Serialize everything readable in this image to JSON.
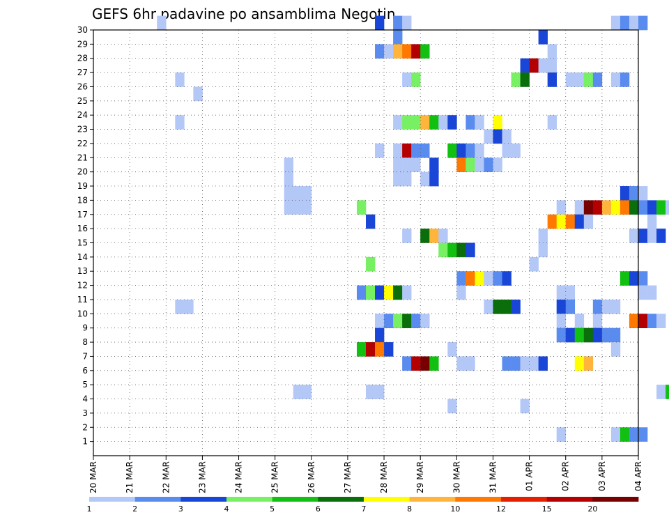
{
  "chart_data": {
    "type": "heatmap",
    "title": "GEFS 6hr padavine po ansamblima Negotin",
    "xlabel": "",
    "ylabel": "",
    "x_start_day": 20,
    "x_end_day": 35,
    "x_ticks": [
      "20 MAR",
      "21 MAR",
      "22 MAR",
      "23 MAR",
      "24 MAR",
      "25 MAR",
      "26 MAR",
      "27 MAR",
      "28 MAR",
      "29 MAR",
      "30 MAR",
      "31 MAR",
      "01 APR",
      "02 APR",
      "03 APR",
      "04 APR"
    ],
    "y_ticks": [
      "1",
      "2",
      "3",
      "4",
      "5",
      "6",
      "7",
      "8",
      "9",
      "10",
      "11",
      "12",
      "13",
      "14",
      "15",
      "16",
      "17",
      "18",
      "19",
      "20",
      "21",
      "22",
      "23",
      "24",
      "25",
      "26",
      "27",
      "28",
      "29",
      "30"
    ],
    "ylim": [
      0,
      30
    ],
    "grid": true,
    "colorbar": {
      "labels": [
        "1",
        "2",
        "3",
        "4",
        "5",
        "6",
        "7",
        "8",
        "10",
        "12",
        "15",
        "20"
      ],
      "colors": [
        "#b4c8f8",
        "#5a8cf0",
        "#1a46d8",
        "#78f064",
        "#12c012",
        "#0a6e0a",
        "#ffff00",
        "#ffb43c",
        "#ff7800",
        "#e61e00",
        "#b40000",
        "#780000"
      ]
    },
    "cells": [
      [
        30,
        21.75,
        1
      ],
      [
        30,
        27.75,
        3
      ],
      [
        30,
        28.25,
        2
      ],
      [
        30,
        28.5,
        1
      ],
      [
        30,
        34.25,
        1
      ],
      [
        30,
        34.5,
        2
      ],
      [
        30,
        34.75,
        1
      ],
      [
        30,
        35,
        2
      ],
      [
        29,
        28.25,
        2
      ],
      [
        29,
        32.25,
        3
      ],
      [
        28,
        27.75,
        2
      ],
      [
        28,
        28,
        1
      ],
      [
        28,
        28.25,
        8
      ],
      [
        28,
        28.5,
        10
      ],
      [
        28,
        28.75,
        15
      ],
      [
        28,
        29,
        5
      ],
      [
        28,
        32.5,
        1
      ],
      [
        27,
        31.75,
        3
      ],
      [
        27,
        32,
        15
      ],
      [
        27,
        32.25,
        1
      ],
      [
        27,
        32.5,
        1
      ],
      [
        26,
        22.25,
        1
      ],
      [
        26,
        28.5,
        1
      ],
      [
        26,
        28.75,
        4
      ],
      [
        26,
        31.5,
        4
      ],
      [
        26,
        31.75,
        6
      ],
      [
        26,
        32.5,
        3
      ],
      [
        26,
        33,
        1
      ],
      [
        26,
        33.25,
        1
      ],
      [
        26,
        33.5,
        4
      ],
      [
        26,
        33.75,
        2
      ],
      [
        26,
        34.25,
        1
      ],
      [
        26,
        34.5,
        2
      ],
      [
        25,
        22.75,
        1
      ],
      [
        23,
        22.25,
        1
      ],
      [
        23,
        28.25,
        1
      ],
      [
        23,
        28.5,
        4
      ],
      [
        23,
        28.75,
        4
      ],
      [
        23,
        29,
        8
      ],
      [
        23,
        29.25,
        5
      ],
      [
        23,
        29.5,
        1
      ],
      [
        23,
        29.75,
        3
      ],
      [
        23,
        30.25,
        2
      ],
      [
        23,
        30.5,
        1
      ],
      [
        23,
        31,
        7
      ],
      [
        23,
        32.5,
        1
      ],
      [
        22,
        30.75,
        1
      ],
      [
        22,
        31,
        3
      ],
      [
        22,
        31.25,
        1
      ],
      [
        21,
        27.75,
        1
      ],
      [
        21,
        28.25,
        1
      ],
      [
        21,
        28.5,
        15
      ],
      [
        21,
        28.75,
        2
      ],
      [
        21,
        29,
        2
      ],
      [
        21,
        29.75,
        5
      ],
      [
        21,
        30,
        3
      ],
      [
        21,
        30.25,
        2
      ],
      [
        21,
        30.5,
        1
      ],
      [
        21,
        31.25,
        1
      ],
      [
        21,
        31.5,
        1
      ],
      [
        20,
        25.25,
        1
      ],
      [
        20,
        28.25,
        1
      ],
      [
        20,
        28.5,
        1
      ],
      [
        20,
        28.75,
        1
      ],
      [
        20,
        29.25,
        3
      ],
      [
        20,
        30,
        10
      ],
      [
        20,
        30.25,
        4
      ],
      [
        20,
        30.5,
        1
      ],
      [
        20,
        30.75,
        2
      ],
      [
        20,
        31,
        1
      ],
      [
        19,
        25.25,
        1
      ],
      [
        19,
        28.25,
        1
      ],
      [
        19,
        28.5,
        1
      ],
      [
        19,
        29,
        1
      ],
      [
        19,
        29.25,
        3
      ],
      [
        18,
        25.25,
        1
      ],
      [
        18,
        25.5,
        1
      ],
      [
        18,
        25.75,
        1
      ],
      [
        18,
        34.5,
        3
      ],
      [
        18,
        34.75,
        2
      ],
      [
        18,
        35,
        1
      ],
      [
        17,
        25.25,
        1
      ],
      [
        17,
        25.5,
        1
      ],
      [
        17,
        25.75,
        1
      ],
      [
        17,
        27.25,
        4
      ],
      [
        17,
        32.75,
        1
      ],
      [
        17,
        33.25,
        1
      ],
      [
        17,
        33.5,
        20
      ],
      [
        17,
        33.75,
        15
      ],
      [
        17,
        34,
        8
      ],
      [
        17,
        34.25,
        7
      ],
      [
        17,
        34.5,
        10
      ],
      [
        17,
        34.75,
        6
      ],
      [
        17,
        35,
        2
      ],
      [
        17,
        35.25,
        3
      ],
      [
        17,
        35.5,
        5
      ],
      [
        17,
        35.75,
        1
      ],
      [
        16,
        27.5,
        3
      ],
      [
        16,
        32.5,
        10
      ],
      [
        16,
        32.75,
        7
      ],
      [
        16,
        33,
        10
      ],
      [
        16,
        33.25,
        3
      ],
      [
        16,
        33.5,
        1
      ],
      [
        16,
        35.25,
        1
      ],
      [
        15,
        28.5,
        1
      ],
      [
        15,
        29,
        6
      ],
      [
        15,
        29.25,
        8
      ],
      [
        15,
        29.5,
        1
      ],
      [
        15,
        32.25,
        1
      ],
      [
        15,
        34.75,
        1
      ],
      [
        15,
        35,
        3
      ],
      [
        15,
        35.25,
        1
      ],
      [
        15,
        35.5,
        3
      ],
      [
        14,
        29.5,
        4
      ],
      [
        14,
        29.75,
        5
      ],
      [
        14,
        30,
        6
      ],
      [
        14,
        30.25,
        3
      ],
      [
        14,
        32.25,
        1
      ],
      [
        13,
        27.5,
        4
      ],
      [
        13,
        32,
        1
      ],
      [
        12,
        30,
        2
      ],
      [
        12,
        30.25,
        10
      ],
      [
        12,
        30.5,
        7
      ],
      [
        12,
        30.75,
        1
      ],
      [
        12,
        31,
        2
      ],
      [
        12,
        31.25,
        3
      ],
      [
        12,
        34.5,
        5
      ],
      [
        12,
        34.75,
        3
      ],
      [
        12,
        35,
        2
      ],
      [
        11,
        27.25,
        2
      ],
      [
        11,
        27.5,
        4
      ],
      [
        11,
        27.75,
        3
      ],
      [
        11,
        28,
        7
      ],
      [
        11,
        28.25,
        6
      ],
      [
        11,
        28.5,
        1
      ],
      [
        11,
        30,
        1
      ],
      [
        11,
        32.75,
        1
      ],
      [
        11,
        33,
        1
      ],
      [
        11,
        35,
        1
      ],
      [
        11,
        35.25,
        1
      ],
      [
        10,
        22.25,
        1
      ],
      [
        10,
        22.5,
        1
      ],
      [
        10,
        30.75,
        1
      ],
      [
        10,
        31,
        6
      ],
      [
        10,
        31.25,
        6
      ],
      [
        10,
        31.5,
        3
      ],
      [
        10,
        32.75,
        3
      ],
      [
        10,
        33,
        2
      ],
      [
        10,
        33.75,
        2
      ],
      [
        10,
        34,
        1
      ],
      [
        10,
        34.25,
        1
      ],
      [
        9,
        27.75,
        1
      ],
      [
        9,
        28,
        2
      ],
      [
        9,
        28.25,
        4
      ],
      [
        9,
        28.5,
        6
      ],
      [
        9,
        28.75,
        2
      ],
      [
        9,
        29,
        1
      ],
      [
        9,
        32.75,
        1
      ],
      [
        9,
        33.25,
        1
      ],
      [
        9,
        33.75,
        1
      ],
      [
        9,
        34.75,
        10
      ],
      [
        9,
        35,
        15
      ],
      [
        9,
        35.25,
        2
      ],
      [
        9,
        35.5,
        1
      ],
      [
        8,
        27.75,
        3
      ],
      [
        8,
        32.75,
        2
      ],
      [
        8,
        33,
        3
      ],
      [
        8,
        33.25,
        5
      ],
      [
        8,
        33.5,
        6
      ],
      [
        8,
        33.75,
        3
      ],
      [
        8,
        34,
        2
      ],
      [
        8,
        34.25,
        2
      ],
      [
        7,
        27.25,
        5
      ],
      [
        7,
        27.5,
        15
      ],
      [
        7,
        27.75,
        10
      ],
      [
        7,
        28,
        3
      ],
      [
        7,
        29.75,
        1
      ],
      [
        7,
        34.25,
        1
      ],
      [
        6,
        28.5,
        2
      ],
      [
        6,
        28.75,
        15
      ],
      [
        6,
        29,
        20
      ],
      [
        6,
        29.25,
        5
      ],
      [
        6,
        30,
        1
      ],
      [
        6,
        30.25,
        1
      ],
      [
        6,
        31.25,
        2
      ],
      [
        6,
        31.5,
        2
      ],
      [
        6,
        31.75,
        1
      ],
      [
        6,
        32,
        1
      ],
      [
        6,
        32.25,
        3
      ],
      [
        6,
        33.25,
        7
      ],
      [
        6,
        33.5,
        8
      ],
      [
        4,
        25.5,
        1
      ],
      [
        4,
        25.75,
        1
      ],
      [
        4,
        27.5,
        1
      ],
      [
        4,
        27.75,
        1
      ],
      [
        4,
        35.5,
        1
      ],
      [
        4,
        35.75,
        5
      ],
      [
        3,
        29.75,
        1
      ],
      [
        3,
        31.75,
        1
      ],
      [
        1,
        32.75,
        1
      ],
      [
        1,
        34.25,
        1
      ],
      [
        1,
        34.5,
        5
      ],
      [
        1,
        34.75,
        2
      ],
      [
        1,
        35,
        2
      ]
    ]
  }
}
